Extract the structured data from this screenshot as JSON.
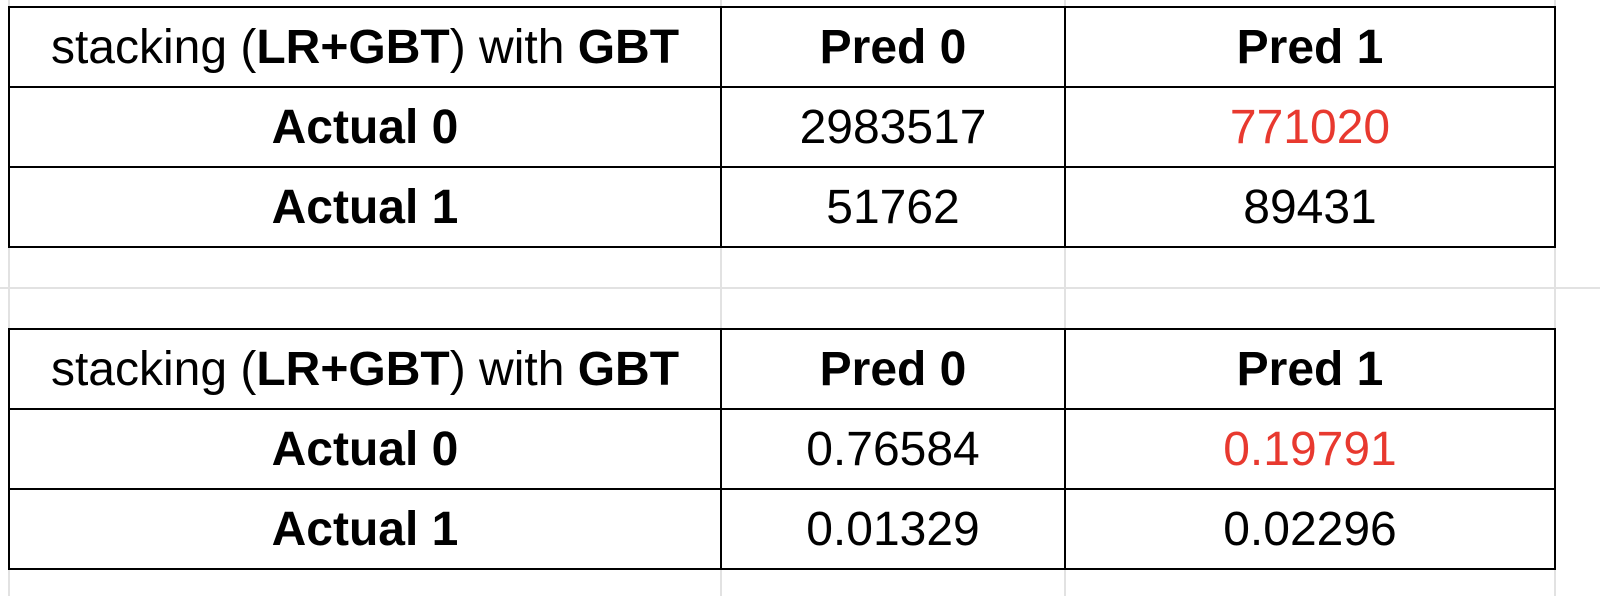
{
  "accent_red": "#e8392f",
  "tables": [
    {
      "header": {
        "title_pre": "stacking (",
        "title_bold1": "LR+GBT",
        "title_mid": ") with ",
        "title_bold2": "GBT",
        "col1": "Pred 0",
        "col2": "Pred 1"
      },
      "rows": [
        {
          "label": "Actual 0",
          "pred0": "2983517",
          "pred1": "771020"
        },
        {
          "label": "Actual 1",
          "pred0": "51762",
          "pred1": "89431"
        }
      ]
    },
    {
      "header": {
        "title_pre": "stacking (",
        "title_bold1": "LR+GBT",
        "title_mid": ") with ",
        "title_bold2": "GBT",
        "col1": "Pred 0",
        "col2": "Pred 1"
      },
      "rows": [
        {
          "label": "Actual 0",
          "pred0": "0.76584",
          "pred1": "0.19791"
        },
        {
          "label": "Actual 1",
          "pred0": "0.01329",
          "pred1": "0.02296"
        }
      ]
    }
  ]
}
